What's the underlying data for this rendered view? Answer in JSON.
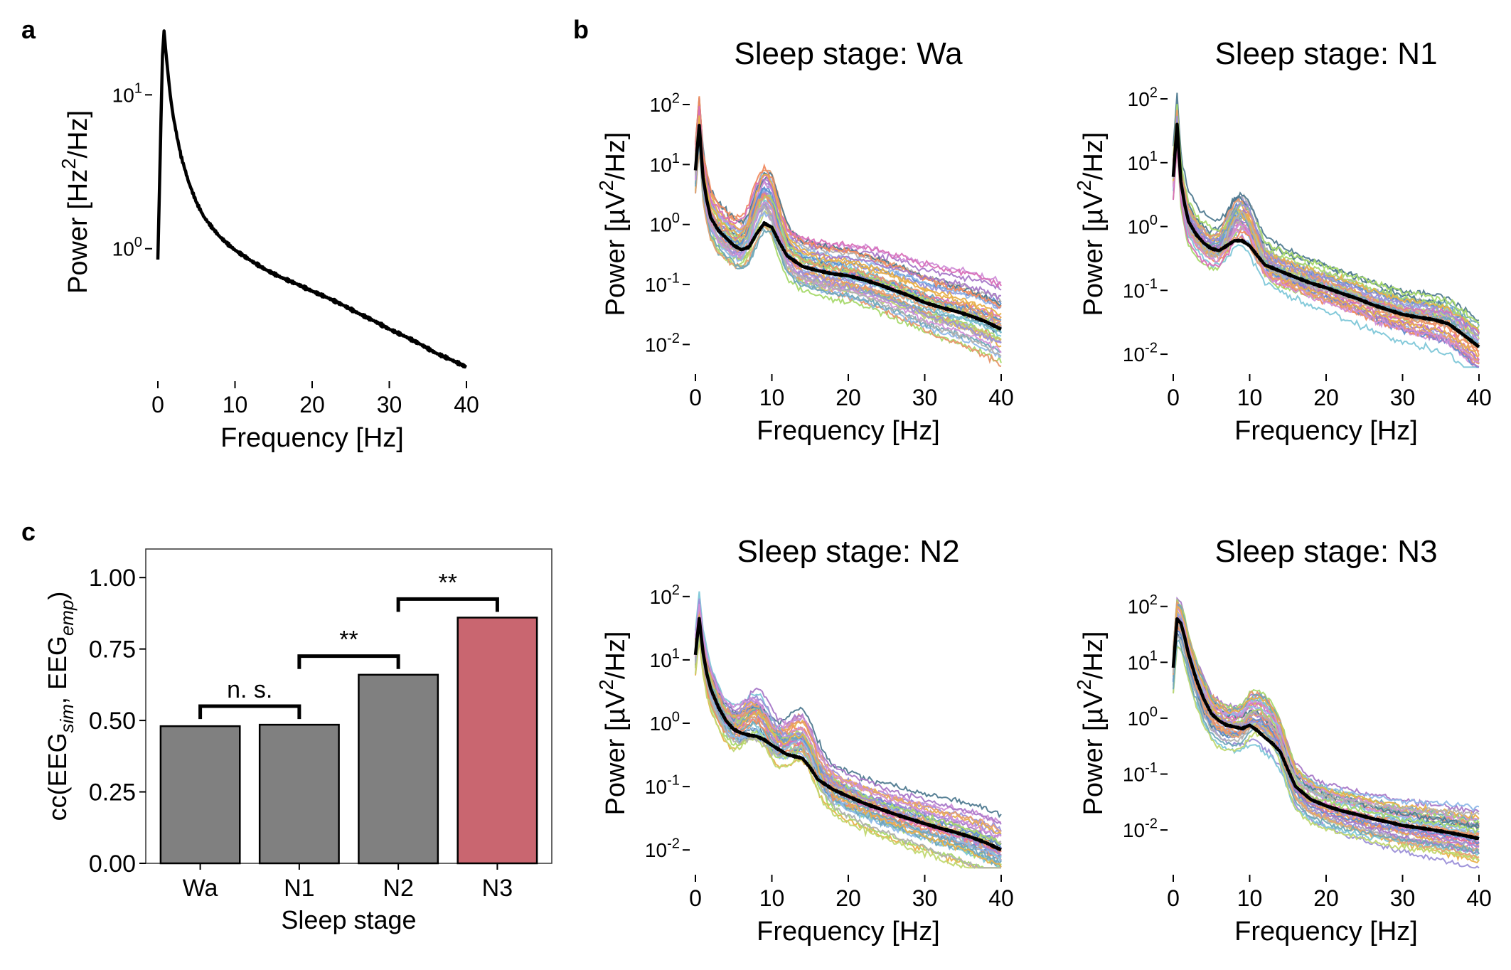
{
  "figure": {
    "panel_labels": [
      "a",
      "b",
      "c"
    ]
  },
  "chart_data": [
    {
      "id": "a",
      "type": "line",
      "title": "",
      "xlabel": "Frequency [Hz]",
      "ylabel": "Power [Hz²/Hz]",
      "ylabel_parts": [
        "Power [Hz",
        "2",
        "/Hz]"
      ],
      "xlim": [
        0,
        40
      ],
      "xticks": [
        0,
        10,
        20,
        30,
        40
      ],
      "yscale": "log",
      "ylim": [
        0.15,
        27
      ],
      "yticks": [
        {
          "value": 1,
          "base": "10",
          "exp": "0"
        },
        {
          "value": 10,
          "base": "10",
          "exp": "1"
        }
      ],
      "series": [
        {
          "name": "simulated",
          "color": "#000000",
          "x": [
            0,
            0.3,
            0.6,
            0.8,
            1.0,
            1.3,
            1.6,
            2.0,
            2.5,
            3,
            4,
            5,
            6,
            7,
            8,
            9,
            10,
            12,
            14,
            16,
            18,
            20,
            22,
            24,
            26,
            28,
            30,
            32,
            34,
            36,
            38,
            40
          ],
          "y": [
            0.85,
            4.0,
            18,
            26,
            20,
            14,
            10,
            7.2,
            5.3,
            4.0,
            2.7,
            2.0,
            1.6,
            1.38,
            1.2,
            1.08,
            0.98,
            0.84,
            0.73,
            0.65,
            0.59,
            0.53,
            0.48,
            0.43,
            0.38,
            0.34,
            0.3,
            0.27,
            0.24,
            0.21,
            0.19,
            0.17
          ]
        }
      ]
    },
    {
      "id": "b-wa",
      "type": "line",
      "title": "Sleep stage: Wa",
      "xlabel": "Frequency [Hz]",
      "ylabel": "Power [µV²/Hz]",
      "ylabel_parts": [
        "Power [µV",
        "2",
        "/Hz]"
      ],
      "xlim": [
        0,
        40
      ],
      "xticks": [
        0,
        10,
        20,
        30,
        40
      ],
      "yscale": "log",
      "ylim": [
        0.004,
        260
      ],
      "yticks": [
        {
          "value": 0.01,
          "base": "10",
          "exp": "-2"
        },
        {
          "value": 0.1,
          "base": "10",
          "exp": "-1"
        },
        {
          "value": 1,
          "base": "10",
          "exp": "0"
        },
        {
          "value": 10,
          "base": "10",
          "exp": "1"
        },
        {
          "value": 100,
          "base": "10",
          "exp": "2"
        }
      ],
      "mean": {
        "name": "mean",
        "color": "#000000",
        "x": [
          0,
          0.5,
          1,
          1.5,
          2,
          3,
          4,
          5,
          6,
          7,
          8,
          9,
          10,
          11,
          12,
          14,
          16,
          18,
          20,
          22,
          24,
          26,
          28,
          30,
          32,
          34,
          36,
          38,
          40
        ],
        "y": [
          8,
          45,
          6,
          2.5,
          1.3,
          0.8,
          0.6,
          0.45,
          0.38,
          0.42,
          0.7,
          1.05,
          0.9,
          0.5,
          0.3,
          0.2,
          0.17,
          0.15,
          0.14,
          0.12,
          0.1,
          0.08,
          0.065,
          0.05,
          0.042,
          0.036,
          0.03,
          0.024,
          0.018
        ]
      },
      "channels": {
        "count": 40,
        "spread": 1.1,
        "alpha_peak": 9,
        "alpha_amp": 2.2,
        "beta_peak": 0,
        "beta_amp": 0
      }
    },
    {
      "id": "b-n1",
      "type": "line",
      "title": "Sleep stage: N1",
      "xlabel": "Frequency [Hz]",
      "ylabel": "Power [µV²/Hz]",
      "ylabel_parts": [
        "Power [µV",
        "2",
        "/Hz]"
      ],
      "xlim": [
        0,
        40
      ],
      "xticks": [
        0,
        10,
        20,
        30,
        40
      ],
      "yscale": "log",
      "ylim": [
        0.006,
        200
      ],
      "yticks": [
        {
          "value": 0.01,
          "base": "10",
          "exp": "-2"
        },
        {
          "value": 0.1,
          "base": "10",
          "exp": "-1"
        },
        {
          "value": 1,
          "base": "10",
          "exp": "0"
        },
        {
          "value": 10,
          "base": "10",
          "exp": "1"
        },
        {
          "value": 100,
          "base": "10",
          "exp": "2"
        }
      ],
      "mean": {
        "name": "mean",
        "color": "#000000",
        "x": [
          0,
          0.5,
          1,
          1.5,
          2,
          3,
          4,
          5,
          6,
          7,
          8,
          9,
          10,
          11,
          12,
          14,
          16,
          18,
          20,
          22,
          24,
          26,
          28,
          30,
          32,
          34,
          36,
          38,
          40
        ],
        "y": [
          6,
          40,
          5,
          2.2,
          1.2,
          0.75,
          0.55,
          0.45,
          0.42,
          0.5,
          0.6,
          0.6,
          0.5,
          0.35,
          0.25,
          0.2,
          0.16,
          0.13,
          0.11,
          0.09,
          0.075,
          0.06,
          0.05,
          0.042,
          0.038,
          0.035,
          0.03,
          0.02,
          0.013
        ]
      },
      "channels": {
        "count": 40,
        "spread": 1.0,
        "alpha_peak": 9,
        "alpha_amp": 1.6,
        "beta_peak": 0,
        "beta_amp": 0
      }
    },
    {
      "id": "b-n2",
      "type": "line",
      "title": "Sleep stage: N2",
      "xlabel": "Frequency [Hz]",
      "ylabel": "Power [µV²/Hz]",
      "ylabel_parts": [
        "Power [µV",
        "2",
        "/Hz]"
      ],
      "xlim": [
        0,
        40
      ],
      "xticks": [
        0,
        10,
        20,
        30,
        40
      ],
      "yscale": "log",
      "ylim": [
        0.005,
        200
      ],
      "yticks": [
        {
          "value": 0.01,
          "base": "10",
          "exp": "-2"
        },
        {
          "value": 0.1,
          "base": "10",
          "exp": "-1"
        },
        {
          "value": 1,
          "base": "10",
          "exp": "0"
        },
        {
          "value": 10,
          "base": "10",
          "exp": "1"
        },
        {
          "value": 100,
          "base": "10",
          "exp": "2"
        }
      ],
      "mean": {
        "name": "mean",
        "color": "#000000",
        "x": [
          0,
          0.5,
          1,
          1.5,
          2,
          3,
          4,
          5,
          6,
          7,
          8,
          9,
          10,
          11,
          12,
          13,
          14,
          15,
          16,
          18,
          20,
          22,
          24,
          26,
          28,
          30,
          32,
          34,
          36,
          38,
          40
        ],
        "y": [
          12,
          45,
          13,
          6,
          3.5,
          1.8,
          1.1,
          0.8,
          0.7,
          0.65,
          0.62,
          0.55,
          0.45,
          0.38,
          0.32,
          0.3,
          0.28,
          0.2,
          0.13,
          0.09,
          0.07,
          0.055,
          0.045,
          0.037,
          0.031,
          0.026,
          0.022,
          0.019,
          0.016,
          0.013,
          0.01
        ]
      },
      "channels": {
        "count": 40,
        "spread": 1.0,
        "alpha_peak": 8,
        "alpha_amp": 1.3,
        "beta_peak": 14,
        "beta_amp": 1.4
      }
    },
    {
      "id": "b-n3",
      "type": "line",
      "title": "Sleep stage: N3",
      "xlabel": "Frequency [Hz]",
      "ylabel": "Power [µV²/Hz]",
      "ylabel_parts": [
        "Power [µV",
        "2",
        "/Hz]"
      ],
      "xlim": [
        0,
        40
      ],
      "xticks": [
        0,
        10,
        20,
        30,
        40
      ],
      "yscale": "log",
      "ylim": [
        0.002,
        330
      ],
      "yticks": [
        {
          "value": 0.01,
          "base": "10",
          "exp": "-2"
        },
        {
          "value": 0.1,
          "base": "10",
          "exp": "-1"
        },
        {
          "value": 1,
          "base": "10",
          "exp": "0"
        },
        {
          "value": 10,
          "base": "10",
          "exp": "1"
        },
        {
          "value": 100,
          "base": "10",
          "exp": "2"
        }
      ],
      "mean": {
        "name": "mean",
        "color": "#000000",
        "x": [
          0,
          0.5,
          1,
          1.5,
          2,
          3,
          4,
          5,
          6,
          7,
          8,
          9,
          10,
          11,
          12,
          13,
          14,
          15,
          16,
          18,
          20,
          22,
          24,
          26,
          28,
          30,
          32,
          34,
          36,
          38,
          40
        ],
        "y": [
          8,
          60,
          50,
          28,
          14,
          5,
          2.2,
          1.2,
          0.9,
          0.75,
          0.7,
          0.65,
          0.75,
          0.6,
          0.45,
          0.35,
          0.25,
          0.12,
          0.06,
          0.035,
          0.027,
          0.022,
          0.019,
          0.016,
          0.014,
          0.012,
          0.011,
          0.01,
          0.009,
          0.008,
          0.007
        ]
      },
      "channels": {
        "count": 40,
        "spread": 1.0,
        "alpha_peak": 0,
        "alpha_amp": 0,
        "beta_peak": 12,
        "beta_amp": 1.3
      }
    },
    {
      "id": "c",
      "type": "bar",
      "title": "",
      "xlabel": "Sleep stage",
      "ylabel": "cc(EEGsim, EEGemp)",
      "ylabel_parts": [
        "cc(EEG",
        "sim",
        ", EEG",
        "emp",
        ")"
      ],
      "categories": [
        "Wa",
        "N1",
        "N2",
        "N3"
      ],
      "values": [
        0.48,
        0.485,
        0.66,
        0.86
      ],
      "colors": [
        "#808080",
        "#808080",
        "#808080",
        "#c96670"
      ],
      "ylim": [
        0,
        1.1
      ],
      "yticks": [
        "0.00",
        "0.25",
        "0.50",
        "0.75",
        "1.00"
      ],
      "significance": [
        {
          "from": 0,
          "to": 1,
          "label": "n. s."
        },
        {
          "from": 1,
          "to": 2,
          "label": "**"
        },
        {
          "from": 2,
          "to": 3,
          "label": "**"
        }
      ]
    }
  ]
}
